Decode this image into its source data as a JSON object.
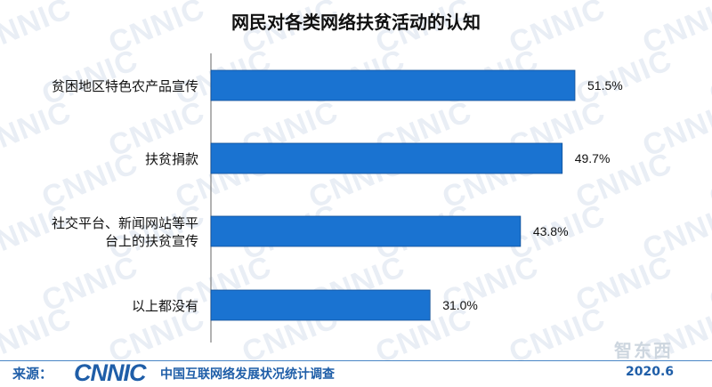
{
  "chart_data": {
    "type": "bar",
    "orientation": "horizontal",
    "title": "网民对各类网络扶贫活动的认知",
    "categories": [
      "贫困地区特色农产品宣传",
      "扶贫捐款",
      "社交平台、新闻网站等平台上的扶贫宣传",
      "以上都没有"
    ],
    "category_lines": [
      [
        "贫困地区特色农产品宣传"
      ],
      [
        "扶贫捐款"
      ],
      [
        "社交平台、新闻网站等平",
        "台上的扶贫宣传"
      ],
      [
        "以上都没有"
      ]
    ],
    "values": [
      51.5,
      49.7,
      43.8,
      31.0
    ],
    "value_labels": [
      "51.5%",
      "49.7%",
      "43.8%",
      "31.0%"
    ],
    "xlim": [
      0,
      60
    ],
    "grid": false,
    "bar_color": "#1a73d1"
  },
  "footer": {
    "source_label": "来源：",
    "logo_text": "CNNIC",
    "org_name": "中国互联网络发展状况统计调查",
    "date": "2020.6"
  },
  "watermark": {
    "text": "CNNIC"
  },
  "brand_mark": {
    "text": "智东西"
  }
}
